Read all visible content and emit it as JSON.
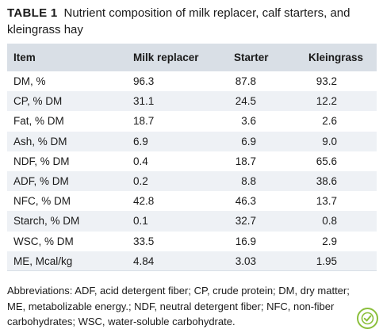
{
  "caption": {
    "label": "TABLE 1",
    "text": "Nutrient composition of milk replacer, calf starters, and kleingrass hay"
  },
  "table": {
    "headers": [
      "Item",
      "Milk replacer",
      "Starter",
      "Kleingrass"
    ],
    "rows": [
      {
        "item": "DM, %",
        "milk": "96.3",
        "starter": "87.8",
        "klein": "93.2"
      },
      {
        "item": "CP, % DM",
        "milk": "31.1",
        "starter": "24.5",
        "klein": "12.2"
      },
      {
        "item": "Fat, % DM",
        "milk": "18.7",
        "starter": "3.6",
        "klein": "2.6"
      },
      {
        "item": "Ash, % DM",
        "milk": "6.9",
        "starter": "6.9",
        "klein": "9.0"
      },
      {
        "item": "NDF, % DM",
        "milk": "0.4",
        "starter": "18.7",
        "klein": "65.6"
      },
      {
        "item": "ADF, % DM",
        "milk": "0.2",
        "starter": "8.8",
        "klein": "38.6"
      },
      {
        "item": "NFC, % DM",
        "milk": "42.8",
        "starter": "46.3",
        "klein": "13.7"
      },
      {
        "item": "Starch, % DM",
        "milk": "0.1",
        "starter": "32.7",
        "klein": "0.8"
      },
      {
        "item": "WSC, % DM",
        "milk": "33.5",
        "starter": "16.9",
        "klein": "2.9"
      },
      {
        "item": "ME, Mcal/kg",
        "milk": "4.84",
        "starter": "3.03",
        "klein": "1.95"
      }
    ]
  },
  "footnote": "Abbreviations: ADF, acid detergent fiber; CP, crude protein; DM, dry matter; ME, metabolizable energy.; NDF, neutral detergent fiber; NFC, non-fiber carbohydrates; WSC, water-soluble carbohydrate.",
  "colors": {
    "header_bg": "#d9dfe6",
    "stripe_bg": "#eef1f5",
    "badge_green": "#8bbf3c"
  },
  "icons": {
    "badge": "checkmark-badge-icon"
  }
}
